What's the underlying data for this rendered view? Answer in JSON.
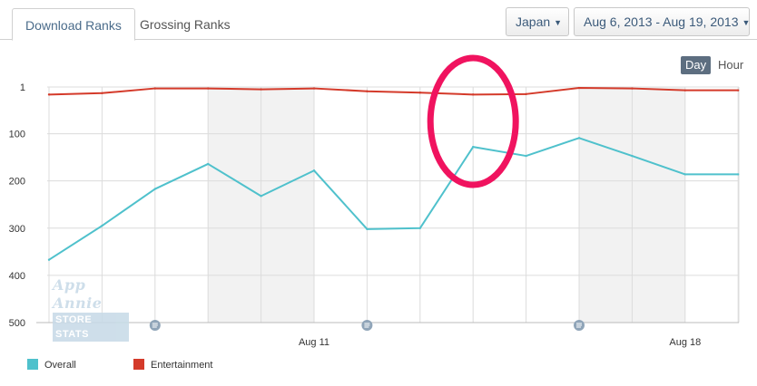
{
  "tabs": [
    {
      "label": "Download Ranks",
      "active": true
    },
    {
      "label": "Grossing Ranks",
      "active": false
    }
  ],
  "filters": {
    "country": "Japan",
    "date_range": "Aug 6, 2013 - Aug 19, 2013"
  },
  "granularity": {
    "day_label": "Day",
    "hour_label": "Hour",
    "selected": "Day"
  },
  "watermark": {
    "line1": "App Annie",
    "line2": "STORE STATS"
  },
  "chart_data": {
    "type": "line",
    "x": [
      "Aug 6",
      "Aug 7",
      "Aug 8",
      "Aug 9",
      "Aug 10",
      "Aug 11",
      "Aug 12",
      "Aug 13",
      "Aug 14",
      "Aug 15",
      "Aug 16",
      "Aug 17",
      "Aug 18",
      "Aug 19"
    ],
    "x_tick_labels": [
      {
        "at": "Aug 11",
        "label": "Aug 11"
      },
      {
        "at": "Aug 18",
        "label": "Aug 18"
      }
    ],
    "y_tick_labels": [
      "1",
      "100",
      "200",
      "300",
      "400",
      "500"
    ],
    "y_ticks": [
      1,
      100,
      200,
      300,
      400,
      500
    ],
    "ylim": [
      1,
      500
    ],
    "y_inverted": true,
    "grid": true,
    "shaded_weekends": [
      [
        "Aug 9",
        "Aug 11"
      ],
      [
        "Aug 16",
        "Aug 18"
      ]
    ],
    "annotation_markers_at": [
      "Aug 8",
      "Aug 12",
      "Aug 16"
    ],
    "highlight_ellipse_at": "Aug 14",
    "legend_position": "bottom-left",
    "series": [
      {
        "name": "Overall",
        "color": "#4fc1cc",
        "values": [
          367,
          295,
          217,
          164,
          232,
          178,
          302,
          300,
          128,
          147,
          109,
          147,
          186,
          186
        ]
      },
      {
        "name": "Entertainment",
        "color": "#d43a2a",
        "values": [
          17,
          14,
          4,
          4,
          6,
          4,
          10,
          13,
          17,
          16,
          3,
          4,
          8,
          8
        ]
      }
    ]
  }
}
